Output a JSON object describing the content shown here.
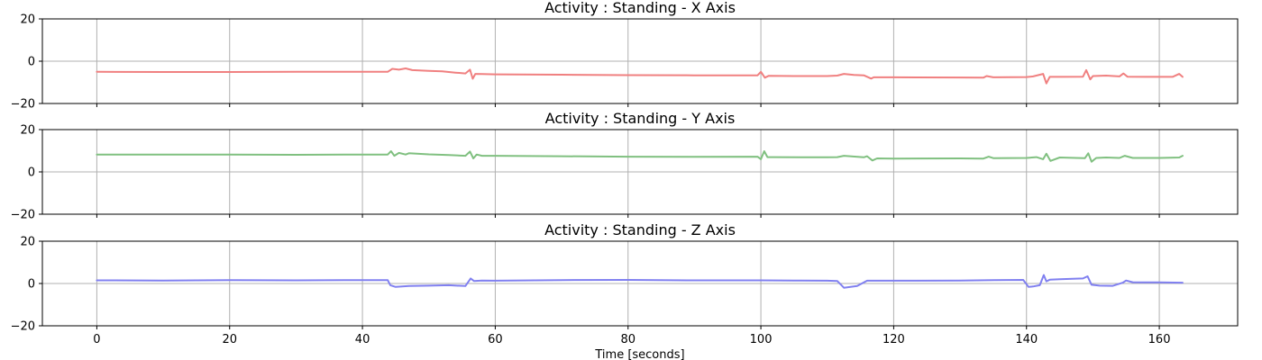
{
  "xlabel": "Time [seconds]",
  "chart_data": [
    {
      "type": "line",
      "title": "Activity : Standing - X Axis",
      "color": "#f08080",
      "xlim": [
        -8.2,
        171.8
      ],
      "ylim": [
        -20,
        20
      ],
      "xticks": [
        0,
        20,
        40,
        60,
        80,
        100,
        120,
        140,
        160
      ],
      "yticks": [
        -20,
        0,
        20
      ],
      "grid": true,
      "x": [
        0,
        10,
        20,
        30,
        40,
        43.8,
        44.5,
        45.5,
        46.5,
        47.5,
        50,
        52,
        54,
        55.5,
        56.2,
        56.6,
        57,
        58,
        60,
        70,
        80,
        90,
        99.5,
        100,
        100.6,
        101.2,
        105,
        110,
        111.5,
        112.5,
        114,
        115.5,
        116.6,
        117,
        120,
        130,
        133.5,
        134,
        135,
        140,
        141,
        142.5,
        143,
        143.5,
        145,
        148.5,
        149,
        149.6,
        150,
        152,
        154,
        154.6,
        155.2,
        158,
        162,
        163,
        163.5
      ],
      "y": [
        -5.0,
        -5.1,
        -5.1,
        -5.0,
        -5.0,
        -5.0,
        -3.6,
        -4.0,
        -3.4,
        -4.2,
        -4.6,
        -4.8,
        -5.4,
        -5.8,
        -4.0,
        -8.3,
        -6.0,
        -6.1,
        -6.2,
        -6.4,
        -6.6,
        -6.7,
        -6.7,
        -5.0,
        -7.8,
        -6.9,
        -7.0,
        -7.0,
        -6.8,
        -6.0,
        -6.5,
        -6.7,
        -8.2,
        -7.6,
        -7.6,
        -7.7,
        -7.8,
        -7.0,
        -7.6,
        -7.5,
        -7.2,
        -6.0,
        -10.5,
        -7.4,
        -7.4,
        -7.3,
        -4.2,
        -8.6,
        -7.0,
        -6.8,
        -7.2,
        -5.8,
        -7.3,
        -7.4,
        -7.4,
        -6.0,
        -7.4
      ]
    },
    {
      "type": "line",
      "title": "Activity : Standing - Y Axis",
      "color": "#80c080",
      "xlim": [
        -8.2,
        171.8
      ],
      "ylim": [
        -20,
        20
      ],
      "xticks": [
        0,
        20,
        40,
        60,
        80,
        100,
        120,
        140,
        160
      ],
      "yticks": [
        -20,
        0,
        20
      ],
      "grid": true,
      "x": [
        0,
        10,
        20,
        30,
        40,
        43.8,
        44.3,
        44.8,
        45.5,
        46.5,
        47,
        50,
        53,
        55.5,
        56.2,
        56.7,
        57.2,
        58,
        60,
        70,
        80,
        90,
        99.5,
        100,
        100.5,
        101,
        102,
        110,
        111.5,
        112.5,
        115.5,
        116,
        116.8,
        117.5,
        120,
        130,
        133.5,
        134.3,
        135,
        140,
        141.5,
        142.5,
        143,
        143.6,
        145,
        148.8,
        149.3,
        149.8,
        150.5,
        152,
        154,
        154.8,
        156,
        160,
        163,
        163.5
      ],
      "y": [
        8.2,
        8.2,
        8.2,
        8.1,
        8.2,
        8.2,
        9.8,
        7.6,
        9.0,
        8.2,
        8.8,
        8.3,
        8.0,
        7.6,
        9.6,
        6.4,
        8.2,
        7.6,
        7.6,
        7.4,
        7.2,
        7.1,
        7.2,
        6.0,
        9.8,
        7.0,
        7.0,
        6.9,
        7.0,
        7.6,
        6.9,
        7.4,
        5.4,
        6.4,
        6.3,
        6.4,
        6.3,
        7.2,
        6.5,
        6.6,
        7.0,
        6.0,
        8.6,
        5.2,
        6.8,
        6.5,
        8.8,
        4.8,
        6.6,
        6.8,
        6.6,
        7.6,
        6.6,
        6.6,
        6.8,
        7.6
      ]
    },
    {
      "type": "line",
      "title": "Activity : Standing - Z Axis",
      "color": "#8080f0",
      "xlim": [
        -8.2,
        171.8
      ],
      "ylim": [
        -20,
        20
      ],
      "xticks": [
        0,
        20,
        40,
        60,
        80,
        100,
        120,
        140,
        160
      ],
      "yticks": [
        -20,
        0,
        20
      ],
      "grid": true,
      "x": [
        0,
        10,
        20,
        30,
        40,
        43.8,
        44.2,
        45,
        47,
        50,
        53,
        55.5,
        56.3,
        56.8,
        58,
        60,
        70,
        80,
        90,
        100,
        105,
        110,
        111.5,
        112.5,
        113.5,
        114.5,
        116,
        120,
        130,
        135,
        139.5,
        140.3,
        141,
        142,
        142.6,
        143,
        143.5,
        145,
        148.5,
        149.2,
        149.8,
        151,
        153,
        154.5,
        155,
        156,
        160,
        163.5
      ],
      "y": [
        1.5,
        1.4,
        1.6,
        1.5,
        1.6,
        1.6,
        -0.8,
        -1.6,
        -1.2,
        -1.0,
        -0.8,
        -1.2,
        2.4,
        1.2,
        1.4,
        1.3,
        1.6,
        1.7,
        1.5,
        1.5,
        1.4,
        1.3,
        1.2,
        -2.0,
        -1.6,
        -1.2,
        1.3,
        1.3,
        1.4,
        1.6,
        1.7,
        -1.6,
        -1.4,
        -0.8,
        4.0,
        1.0,
        1.8,
        2.0,
        2.4,
        3.4,
        -0.6,
        -1.0,
        -1.1,
        0.4,
        1.4,
        0.6,
        0.5,
        0.4
      ]
    }
  ]
}
